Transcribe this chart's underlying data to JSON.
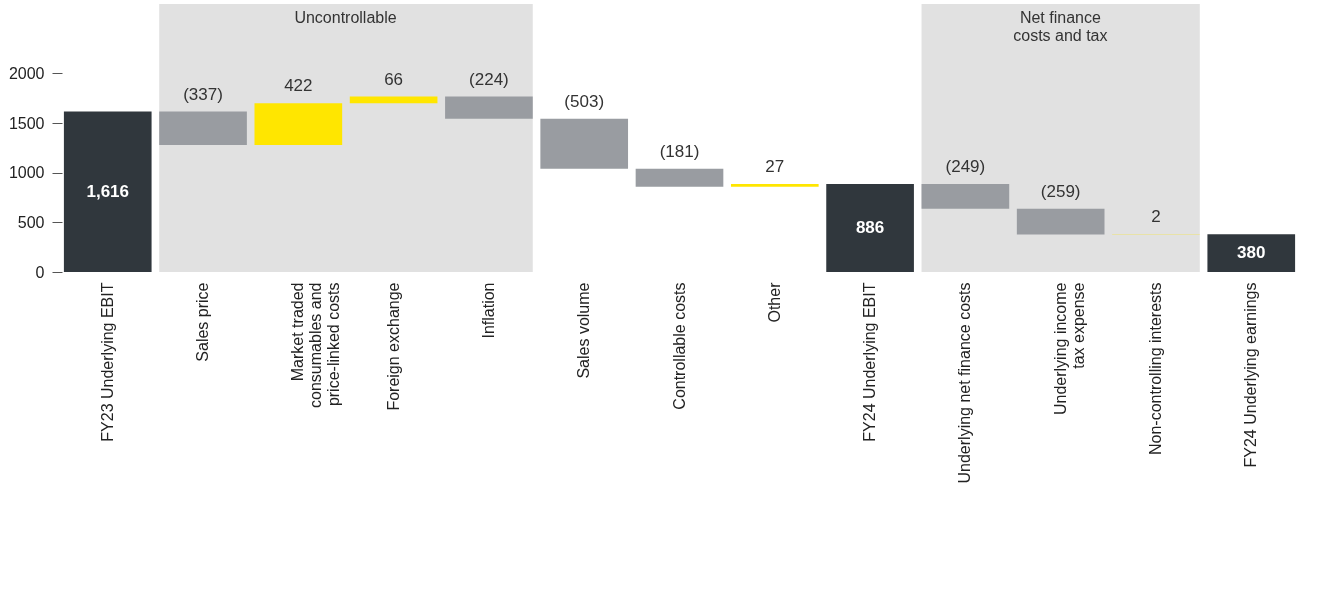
{
  "chart_data": {
    "type": "bar",
    "categories": [
      "FY23 Underlying EBIT",
      "Sales price",
      "Market traded\nconsumables and\nprice-linked costs",
      "Foreign exchange",
      "Inflation",
      "Sales volume",
      "Controllable costs",
      "Other",
      "FY24 Underlying EBIT",
      "Underlying net finance costs",
      "Underlying income\ntax expense",
      "Non-controlling interests",
      "FY24 Underlying earnings"
    ],
    "base": [
      0,
      1616,
      1279,
      1701,
      1767,
      1543,
      1040,
      859,
      0,
      886,
      637,
      378,
      0
    ],
    "values": [
      1616,
      -337,
      422,
      66,
      -224,
      -503,
      -181,
      27,
      886,
      -249,
      -259,
      2,
      380
    ],
    "value_labels": [
      "1,616",
      "(337)",
      "422",
      "66",
      "(224)",
      "(503)",
      "(181)",
      "27",
      "886",
      "(249)",
      "(259)",
      "2",
      "380"
    ],
    "colors": [
      "#30373d",
      "#999ca1",
      "#ffe600",
      "#ffe600",
      "#999ca1",
      "#999ca1",
      "#999ca1",
      "#ffe600",
      "#30373d",
      "#999ca1",
      "#999ca1",
      "#ffe600",
      "#30373d"
    ],
    "ylim": [
      0,
      2700
    ],
    "yticks": [
      0,
      500,
      1000,
      1500,
      2000
    ],
    "bands": [
      {
        "axis": "x",
        "from": "Sales price",
        "to": "Inflation",
        "label": "Uncontrollable",
        "color": "#e1e1e1"
      },
      {
        "axis": "x",
        "from": "Underlying net finance costs",
        "to": "Non-controlling interests",
        "label": "Net finance costs and tax",
        "color": "#e1e1e1"
      }
    ],
    "grid": false,
    "legend": false
  }
}
